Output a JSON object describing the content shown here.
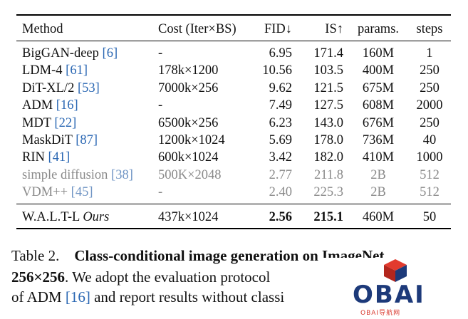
{
  "table": {
    "headers": {
      "method": "Method",
      "cost": "Cost (Iter×BS)",
      "fid": "FID↓",
      "is": "IS↑",
      "params": "params.",
      "steps": "steps"
    },
    "rows": [
      {
        "method": "BigGAN-deep",
        "cite": "[6]",
        "cost": "-",
        "fid": "6.95",
        "is": "171.4",
        "params": "160M",
        "steps": "1"
      },
      {
        "method": "LDM-4",
        "cite": "[61]",
        "cost": "178k×1200",
        "fid": "10.56",
        "is": "103.5",
        "params": "400M",
        "steps": "250"
      },
      {
        "method": "DiT-XL/2",
        "cite": "[53]",
        "cost": "7000k×256",
        "fid": "9.62",
        "is": "121.5",
        "params": "675M",
        "steps": "250"
      },
      {
        "method": "ADM",
        "cite": "[16]",
        "cost": "-",
        "fid": "7.49",
        "is": "127.5",
        "params": "608M",
        "steps": "2000"
      },
      {
        "method": "MDT",
        "cite": "[22]",
        "cost": "6500k×256",
        "fid": "6.23",
        "is": "143.0",
        "params": "676M",
        "steps": "250"
      },
      {
        "method": "MaskDiT",
        "cite": "[87]",
        "cost": "1200k×1024",
        "fid": "5.69",
        "is": "178.0",
        "params": "736M",
        "steps": "40"
      },
      {
        "method": "RIN",
        "cite": "[41]",
        "cost": "600k×1024",
        "fid": "3.42",
        "is": "182.0",
        "params": "410M",
        "steps": "1000"
      },
      {
        "method": "simple diffusion",
        "cite": "[38]",
        "cost": "500K×2048",
        "fid": "2.77",
        "is": "211.8",
        "params": "2B",
        "steps": "512"
      },
      {
        "method": "VDM++",
        "cite": "[45]",
        "cost": "-",
        "fid": "2.40",
        "is": "225.3",
        "params": "2B",
        "steps": "512"
      }
    ],
    "ours": {
      "method": "W.A.L.T-L",
      "tag": "Ours",
      "cost": "437k×1024",
      "fid": "2.56",
      "is": "215.1",
      "params": "460M",
      "steps": "50"
    }
  },
  "caption": {
    "label": "Table 2.",
    "title": "Class-conditional image generation on ImageNet",
    "line2_bold": "256×256",
    "line2_rest": ". We adopt the evaluation protocol",
    "line3_a": "of ADM ",
    "line3_cite": "[16]",
    "line3_b": " and report results without classi"
  },
  "watermark": {
    "brand": "OBAI",
    "sub": "OBAI导航网"
  }
}
